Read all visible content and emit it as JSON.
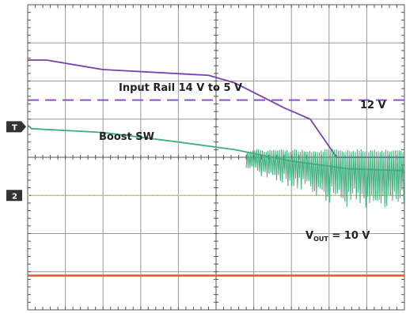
{
  "chart_data": {
    "type": "line",
    "grid": true,
    "grid_divisions": {
      "horizontal": 10,
      "vertical": 8
    },
    "y_range": [
      -4,
      4
    ],
    "x_range": [
      0,
      10
    ],
    "series": [
      {
        "name": "Input Rail 14 V to 5 V",
        "color": "#7b3fb0",
        "x": [
          0,
          0.5,
          2,
          4.8,
          5.5,
          6.2,
          6.8,
          7.5,
          8.2,
          10
        ],
        "y": [
          2.55,
          2.55,
          2.3,
          2.15,
          1.95,
          1.6,
          1.3,
          1.0,
          0.0,
          0.0
        ]
      },
      {
        "name": "Boost SW",
        "color": "#3fae7a",
        "x": [
          0,
          0.1,
          2,
          4,
          5.5,
          7,
          8.5,
          10
        ],
        "y": [
          0.85,
          0.75,
          0.65,
          0.4,
          0.2,
          -0.1,
          -0.3,
          -0.35
        ],
        "switching_from_x": 5.8,
        "switching_envelope": {
          "upper": 0.22,
          "lower": -1.35
        }
      },
      {
        "name": "VOUT = 10 V",
        "color": "#e05a2a",
        "x": [
          0,
          10
        ],
        "y": [
          -3.1,
          -3.1
        ]
      }
    ],
    "reference_lines": [
      {
        "label": "12 V",
        "y": 1.5,
        "color": "#8a4fd0",
        "style": "dashed"
      },
      {
        "label": "",
        "y": -1.0,
        "color": "#d9d24a",
        "style": "dotted"
      }
    ],
    "annotations": {
      "input_rail": "Input Rail 14 V to 5 V",
      "twelve_v": "12 V",
      "boost_sw": "Boost SW",
      "vout_main": "V",
      "vout_sub": "OUT",
      "vout_value": " = 10 V"
    },
    "channel_markers": [
      {
        "label": "T",
        "y": 0.8
      },
      {
        "label": "2",
        "y": -1.0
      }
    ]
  }
}
